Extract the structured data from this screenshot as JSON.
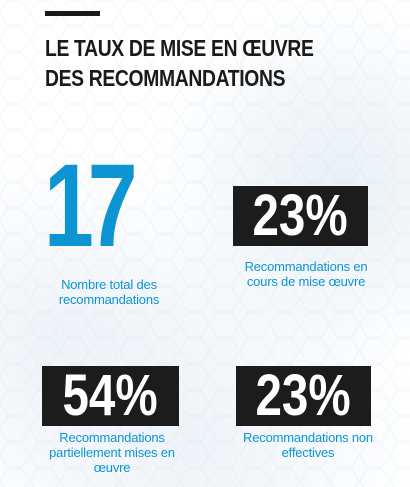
{
  "header": {
    "title_line_1": "LE TAUX DE MISE EN ŒUVRE",
    "title_line_2": "DES RECOMMANDATIONS"
  },
  "colors": {
    "accent_blue": "#0d95d3",
    "dark": "#1c1c1c",
    "background": "#ffffff"
  },
  "stats": {
    "total": {
      "value": "17",
      "label": "Nombre total des recommandations"
    },
    "in_progress": {
      "value": "23%",
      "label": "Recommandations en cours de mise œuvre"
    },
    "partial": {
      "value": "54%",
      "label": "Recommandations partiellement mises en œuvre"
    },
    "not_effective": {
      "value": "23%",
      "label": "Recommandations non effectives"
    }
  }
}
